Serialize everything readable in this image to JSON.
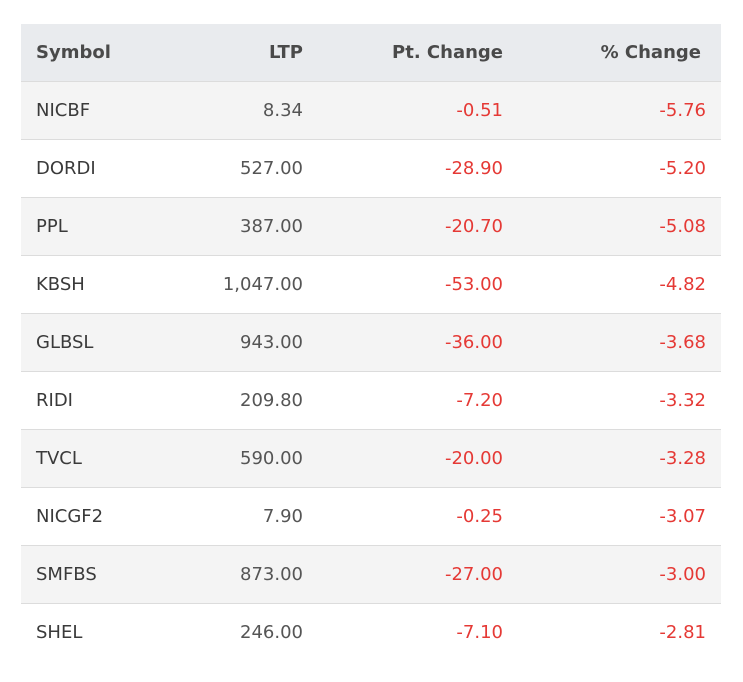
{
  "colors": {
    "header_bg": "#e9ebee",
    "row_alt_bg": "#f4f4f4",
    "negative": "#e53935"
  },
  "table": {
    "headers": {
      "symbol": "Symbol",
      "ltp": "LTP",
      "pt_change": "Pt. Change",
      "pct_change": "% Change"
    },
    "rows": [
      {
        "symbol": "NICBF",
        "ltp": "8.34",
        "pt_change": "-0.51",
        "pct_change": "-5.76"
      },
      {
        "symbol": "DORDI",
        "ltp": "527.00",
        "pt_change": "-28.90",
        "pct_change": "-5.20"
      },
      {
        "symbol": "PPL",
        "ltp": "387.00",
        "pt_change": "-20.70",
        "pct_change": "-5.08"
      },
      {
        "symbol": "KBSH",
        "ltp": "1,047.00",
        "pt_change": "-53.00",
        "pct_change": "-4.82"
      },
      {
        "symbol": "GLBSL",
        "ltp": "943.00",
        "pt_change": "-36.00",
        "pct_change": "-3.68"
      },
      {
        "symbol": "RIDI",
        "ltp": "209.80",
        "pt_change": "-7.20",
        "pct_change": "-3.32"
      },
      {
        "symbol": "TVCL",
        "ltp": "590.00",
        "pt_change": "-20.00",
        "pct_change": "-3.28"
      },
      {
        "symbol": "NICGF2",
        "ltp": "7.90",
        "pt_change": "-0.25",
        "pct_change": "-3.07"
      },
      {
        "symbol": "SMFBS",
        "ltp": "873.00",
        "pt_change": "-27.00",
        "pct_change": "-3.00"
      },
      {
        "symbol": "SHEL",
        "ltp": "246.00",
        "pt_change": "-7.10",
        "pct_change": "-2.81"
      }
    ]
  }
}
